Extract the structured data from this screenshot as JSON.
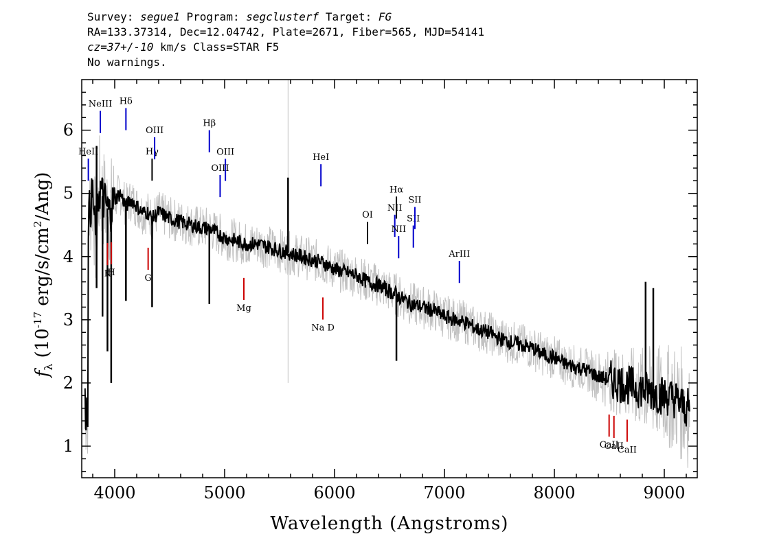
{
  "header": {
    "survey_label": "Survey:",
    "survey": "segue1",
    "program_label": "Program:",
    "program": "segclusterf",
    "target_label": "Target:",
    "target": "FG",
    "line2": "RA=133.37314, Dec=12.04742, Plate=2671, Fiber=565, MJD=54141",
    "cz_value": "cz=37+/-10",
    "cz_rest": "km/s Class=STAR F5",
    "line4": "No warnings."
  },
  "chart_data": {
    "type": "line",
    "xlabel": "Wavelength (Angstroms)",
    "ylabel": "f_λ (10^-17 erg/s/cm^2/Ang)",
    "xlim": [
      3700,
      9300
    ],
    "ylim": [
      0.5,
      6.8
    ],
    "x_ticks": [
      4000,
      5000,
      6000,
      7000,
      8000,
      9000
    ],
    "y_ticks": [
      1,
      2,
      3,
      4,
      5,
      6
    ],
    "grid": false,
    "series": [
      {
        "role": "flux",
        "color": "#000000",
        "points": [
          [
            3760,
            4.6
          ],
          [
            3800,
            5.0
          ],
          [
            3830,
            4.2
          ],
          [
            3860,
            5.1
          ],
          [
            3900,
            4.9
          ],
          [
            3950,
            4.7
          ],
          [
            4000,
            4.9
          ],
          [
            4050,
            5.0
          ],
          [
            4102,
            4.8
          ],
          [
            4150,
            4.9
          ],
          [
            4200,
            4.8
          ],
          [
            4250,
            4.7
          ],
          [
            4300,
            4.7
          ],
          [
            4340,
            4.6
          ],
          [
            4400,
            4.7
          ],
          [
            4500,
            4.6
          ],
          [
            4600,
            4.55
          ],
          [
            4700,
            4.5
          ],
          [
            4800,
            4.45
          ],
          [
            4861,
            4.45
          ],
          [
            4900,
            4.4
          ],
          [
            5000,
            4.3
          ],
          [
            5100,
            4.25
          ],
          [
            5200,
            4.2
          ],
          [
            5300,
            4.2
          ],
          [
            5400,
            4.15
          ],
          [
            5500,
            4.1
          ],
          [
            5600,
            4.05
          ],
          [
            5700,
            4.0
          ],
          [
            5800,
            3.95
          ],
          [
            5900,
            3.9
          ],
          [
            6000,
            3.8
          ],
          [
            6100,
            3.75
          ],
          [
            6200,
            3.7
          ],
          [
            6300,
            3.6
          ],
          [
            6400,
            3.55
          ],
          [
            6500,
            3.45
          ],
          [
            6563,
            3.4
          ],
          [
            6600,
            3.35
          ],
          [
            6700,
            3.25
          ],
          [
            6800,
            3.2
          ],
          [
            6900,
            3.15
          ],
          [
            7000,
            3.05
          ],
          [
            7100,
            3.0
          ],
          [
            7200,
            2.95
          ],
          [
            7300,
            2.85
          ],
          [
            7400,
            2.8
          ],
          [
            7500,
            2.7
          ],
          [
            7600,
            2.65
          ],
          [
            7700,
            2.6
          ],
          [
            7800,
            2.55
          ],
          [
            7900,
            2.45
          ],
          [
            8000,
            2.4
          ],
          [
            8100,
            2.3
          ],
          [
            8200,
            2.25
          ],
          [
            8300,
            2.2
          ],
          [
            8400,
            2.1
          ],
          [
            8500,
            2.05
          ],
          [
            8600,
            2.0
          ],
          [
            8700,
            1.95
          ],
          [
            8800,
            1.9
          ],
          [
            8900,
            1.85
          ],
          [
            9000,
            1.8
          ],
          [
            9100,
            1.75
          ],
          [
            9200,
            1.6
          ]
        ]
      },
      {
        "role": "spikes",
        "color": "#000000",
        "points": [
          [
            3835,
            5.75
          ],
          [
            3835,
            3.5
          ],
          [
            3889,
            3.05
          ],
          [
            3934,
            2.5
          ],
          [
            3968,
            2.0
          ],
          [
            4102,
            3.3
          ],
          [
            4340,
            3.2
          ],
          [
            4861,
            3.25
          ],
          [
            5577,
            5.25
          ],
          [
            6563,
            2.35
          ],
          [
            8830,
            3.6
          ],
          [
            8900,
            3.5
          ]
        ]
      },
      {
        "role": "noise",
        "color": "#c0c0c0"
      }
    ],
    "emission_lines": [
      {
        "label": "HeII",
        "wave": 3760,
        "color": "#0000cc"
      },
      {
        "label": "NeIII",
        "wave": 3869,
        "color": "#0000cc"
      },
      {
        "label": "Hδ",
        "wave": 4102,
        "color": "#0000cc"
      },
      {
        "label": "Hγ",
        "wave": 4340,
        "color": "#000000"
      },
      {
        "label": "OIII",
        "wave": 4363,
        "color": "#0000cc"
      },
      {
        "label": "Hβ",
        "wave": 4861,
        "color": "#0000cc"
      },
      {
        "label": "OIII",
        "wave": 4959,
        "color": "#0000cc"
      },
      {
        "label": "OIII",
        "wave": 5007,
        "color": "#0000cc"
      },
      {
        "label": "HeI",
        "wave": 5876,
        "color": "#0000cc"
      },
      {
        "label": "OI",
        "wave": 6300,
        "color": "#000000"
      },
      {
        "label": "NII",
        "wave": 6548,
        "color": "#0000cc"
      },
      {
        "label": "Hα",
        "wave": 6563,
        "color": "#000000"
      },
      {
        "label": "NII",
        "wave": 6583,
        "color": "#0000cc"
      },
      {
        "label": "SII",
        "wave": 6717,
        "color": "#0000cc"
      },
      {
        "label": "SII",
        "wave": 6731,
        "color": "#0000cc"
      },
      {
        "label": "ArIII",
        "wave": 7136,
        "color": "#0000cc"
      }
    ],
    "absorption_lines": [
      {
        "label": "K",
        "wave": 3934,
        "color": "#cc0000"
      },
      {
        "label": "H",
        "wave": 3969,
        "color": "#cc0000"
      },
      {
        "label": "G",
        "wave": 4304,
        "color": "#cc0000"
      },
      {
        "label": "Mg",
        "wave": 5175,
        "color": "#cc0000"
      },
      {
        "label": "Na D",
        "wave": 5894,
        "color": "#cc0000"
      },
      {
        "label": "CaII",
        "wave": 8498,
        "color": "#cc0000"
      },
      {
        "label": "CaII",
        "wave": 8542,
        "color": "#cc0000"
      },
      {
        "label": "CaII",
        "wave": 8662,
        "color": "#cc0000"
      }
    ]
  }
}
